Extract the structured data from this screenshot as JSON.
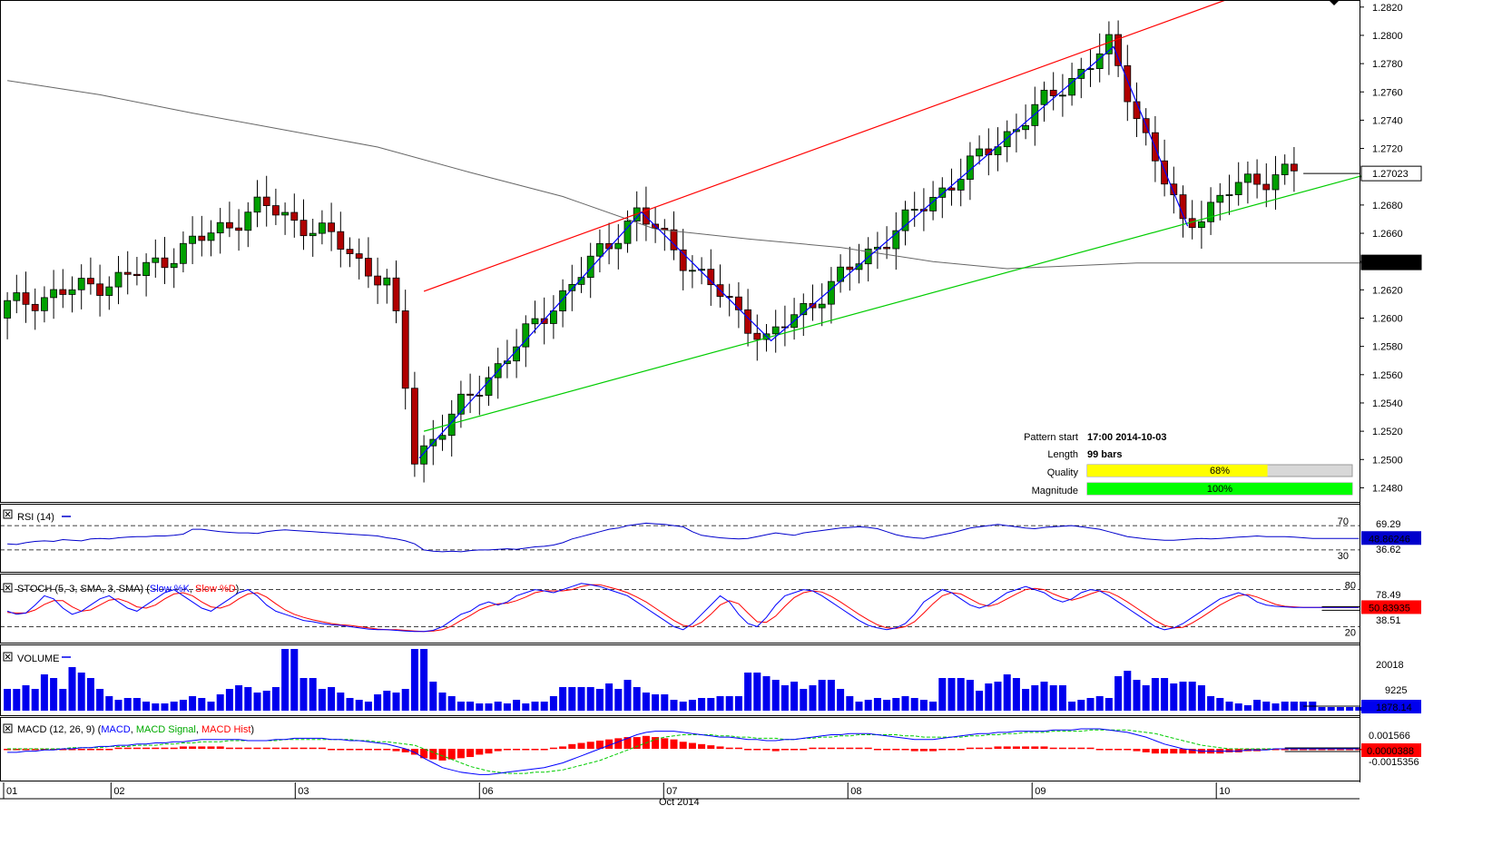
{
  "chart_data": {
    "type": "candlestick",
    "main": {
      "ylim": [
        1.247,
        1.2825
      ],
      "y_ticks": [
        "1.2820",
        "1.2800",
        "1.2780",
        "1.2760",
        "1.2740",
        "1.2720",
        "1.2700",
        "1.2680",
        "1.2660",
        "1.2640",
        "1.2620",
        "1.2600",
        "1.2580",
        "1.2560",
        "1.2540",
        "1.2520",
        "1.2500",
        "1.2480"
      ],
      "last_price": "1.27023",
      "ma_price": "1.26394",
      "pattern_points": [
        {
          "bar": 44.5,
          "price": 1.2501
        },
        {
          "bar": 68.5,
          "price": 1.2675
        },
        {
          "bar": 82.5,
          "price": 1.2584
        },
        {
          "bar": 119.5,
          "price": 1.2792
        },
        {
          "bar": 127.5,
          "price": 1.2665
        }
      ],
      "resistance_line": {
        "from": {
          "bar": 45,
          "price": 1.2619
        },
        "to": {
          "bar": 131.6,
          "price": 1.2825
        }
      },
      "support_line": {
        "from": {
          "bar": 45,
          "price": 1.252
        },
        "to": {
          "bar": 146.5,
          "price": 1.2701
        }
      },
      "moving_average": [
        {
          "bar": 0,
          "price": 1.2768
        },
        {
          "bar": 10,
          "price": 1.2758
        },
        {
          "bar": 20,
          "price": 1.2745
        },
        {
          "bar": 30,
          "price": 1.2733
        },
        {
          "bar": 40,
          "price": 1.2721
        },
        {
          "bar": 50,
          "price": 1.2703
        },
        {
          "bar": 60,
          "price": 1.2686
        },
        {
          "bar": 70,
          "price": 1.2663
        },
        {
          "bar": 80,
          "price": 1.2656
        },
        {
          "bar": 90,
          "price": 1.265
        },
        {
          "bar": 100,
          "price": 1.264
        },
        {
          "bar": 108,
          "price": 1.2635
        },
        {
          "bar": 115,
          "price": 1.2637
        },
        {
          "bar": 122,
          "price": 1.2639
        },
        {
          "bar": 132,
          "price": 1.2639
        },
        {
          "bar": 146.5,
          "price": 1.2639
        }
      ]
    },
    "pattern_info": {
      "start_label": "Pattern start",
      "start_value": "17:00 2014-10-03",
      "length_label": "Length",
      "length_value": "99 bars",
      "quality_label": "Quality",
      "quality_value": "68%",
      "quality_fraction": 0.68,
      "magnitude_label": "Magnitude",
      "magnitude_value": "100%",
      "magnitude_fraction": 1.0
    },
    "rsi": {
      "title": "RSI (14)",
      "level_high": "70",
      "level_low": "30",
      "tick_labels": [
        "69.29",
        "36.62"
      ],
      "last_value": "48.86246",
      "range": [
        0,
        100
      ],
      "values": [
        40,
        39,
        42,
        44,
        45,
        44,
        47,
        46,
        45,
        48,
        49,
        48,
        50,
        51,
        52,
        52,
        53,
        53,
        54,
        56,
        64,
        64,
        62,
        60,
        59,
        58,
        58,
        57,
        60,
        62,
        63,
        62,
        61,
        60,
        59,
        58,
        57,
        56,
        55,
        54,
        53,
        50,
        48,
        45,
        40,
        30,
        28,
        27,
        28,
        27,
        29,
        30,
        30,
        31,
        32,
        31,
        33,
        35,
        36,
        38,
        42,
        48,
        52,
        56,
        60,
        64,
        66,
        70,
        72,
        74,
        73,
        72,
        70,
        68,
        60,
        54,
        52,
        50,
        49,
        48,
        49,
        52,
        55,
        58,
        56,
        54,
        58,
        60,
        62,
        64,
        66,
        67,
        68,
        67,
        65,
        60,
        55,
        52,
        50,
        49,
        52,
        55,
        58,
        62,
        66,
        68,
        70,
        72,
        70,
        68,
        66,
        65,
        67,
        68,
        69,
        70,
        68,
        66,
        64,
        60,
        56,
        52,
        50,
        48,
        47,
        46,
        46,
        47,
        48,
        49,
        48,
        49,
        50,
        51,
        52,
        53,
        52,
        52,
        52,
        51,
        50,
        49,
        49,
        49,
        49,
        49,
        49
      ]
    },
    "stoch": {
      "title": "STOCH (5, 3, SMA, 3, SMA)",
      "k_label": "Slow %K",
      "d_label": "Slow %D",
      "level_high": "80",
      "level_low": "20",
      "tick_labels": [
        "78.49",
        "38.51"
      ],
      "last_value": "50.83935",
      "range": [
        0,
        100
      ],
      "k_values": [
        45,
        40,
        42,
        55,
        70,
        65,
        50,
        40,
        45,
        55,
        65,
        70,
        60,
        50,
        45,
        55,
        65,
        75,
        80,
        70,
        60,
        50,
        45,
        55,
        65,
        75,
        80,
        70,
        55,
        45,
        40,
        35,
        30,
        28,
        25,
        23,
        22,
        20,
        18,
        16,
        15,
        15,
        14,
        13,
        12,
        12,
        14,
        20,
        30,
        40,
        45,
        55,
        60,
        55,
        60,
        70,
        75,
        80,
        78,
        75,
        80,
        85,
        90,
        88,
        85,
        80,
        75,
        70,
        60,
        50,
        40,
        30,
        20,
        15,
        25,
        40,
        55,
        70,
        60,
        40,
        25,
        20,
        35,
        55,
        70,
        75,
        80,
        78,
        70,
        60,
        50,
        40,
        30,
        22,
        18,
        15,
        18,
        25,
        40,
        60,
        70,
        80,
        75,
        65,
        55,
        50,
        55,
        65,
        75,
        80,
        85,
        80,
        75,
        65,
        60,
        65,
        75,
        80,
        78,
        70,
        60,
        50,
        40,
        30,
        20,
        15,
        18,
        25,
        35,
        45,
        55,
        65,
        70,
        75,
        70,
        60,
        55,
        53,
        52,
        51,
        51,
        51,
        51,
        51,
        51,
        51,
        51
      ],
      "d_values": [
        43,
        42,
        42,
        47,
        56,
        62,
        62,
        52,
        45,
        47,
        55,
        63,
        65,
        60,
        52,
        50,
        55,
        65,
        73,
        75,
        70,
        60,
        52,
        50,
        55,
        65,
        73,
        75,
        68,
        57,
        47,
        40,
        35,
        31,
        28,
        25,
        23,
        22,
        20,
        18,
        16,
        15,
        15,
        14,
        13,
        12,
        13,
        15,
        21,
        30,
        38,
        47,
        53,
        57,
        58,
        62,
        68,
        75,
        78,
        78,
        78,
        80,
        85,
        88,
        88,
        84,
        80,
        75,
        68,
        60,
        50,
        40,
        30,
        22,
        20,
        27,
        40,
        55,
        62,
        57,
        42,
        28,
        27,
        37,
        53,
        67,
        75,
        78,
        76,
        69,
        60,
        50,
        40,
        31,
        23,
        18,
        17,
        20,
        28,
        42,
        57,
        70,
        75,
        73,
        65,
        57,
        53,
        57,
        65,
        73,
        80,
        82,
        80,
        73,
        67,
        63,
        67,
        73,
        78,
        76,
        69,
        60,
        50,
        40,
        30,
        22,
        18,
        19,
        26,
        35,
        45,
        55,
        63,
        70,
        72,
        68,
        62,
        56,
        53,
        52,
        51,
        51,
        51,
        51,
        51,
        51,
        51
      ]
    },
    "volume": {
      "title": "VOLUME",
      "tick_labels": [
        "20018",
        "9225"
      ],
      "last_value": "1878.14",
      "ymax": 34000,
      "values": [
        12000,
        12000,
        14000,
        12000,
        20000,
        18000,
        12000,
        24000,
        21000,
        18000,
        12000,
        8000,
        6000,
        7000,
        7000,
        5000,
        4000,
        4000,
        5000,
        6000,
        8000,
        7000,
        5000,
        9000,
        12000,
        14000,
        13000,
        10000,
        11000,
        13000,
        34000,
        34000,
        18000,
        18000,
        12000,
        13000,
        10000,
        7000,
        6000,
        5000,
        9000,
        11000,
        10000,
        12000,
        34000,
        34000,
        16000,
        10000,
        8000,
        5000,
        5000,
        4000,
        4000,
        5000,
        4000,
        6000,
        4000,
        5000,
        5000,
        8000,
        13000,
        13000,
        13000,
        13000,
        12000,
        15000,
        12000,
        17000,
        13000,
        10000,
        9000,
        9000,
        6000,
        5000,
        6000,
        7000,
        7000,
        8000,
        8000,
        8000,
        21000,
        21000,
        19000,
        17000,
        14000,
        16000,
        12000,
        14000,
        17000,
        17000,
        12000,
        8000,
        5000,
        6000,
        7000,
        6000,
        7000,
        8000,
        7000,
        6000,
        5000,
        18000,
        18000,
        18000,
        17000,
        11000,
        15000,
        16000,
        20000,
        18000,
        12000,
        14000,
        16000,
        14000,
        14000,
        5000,
        6000,
        7000,
        8000,
        7000,
        19000,
        22000,
        17000,
        14000,
        18000,
        18000,
        15000,
        16000,
        16000,
        14000,
        8000,
        7000,
        5000,
        4000,
        3000,
        6000,
        5000,
        4000,
        5000,
        5000,
        5000,
        5000,
        2000,
        2000,
        2000,
        2000,
        2000
      ]
    },
    "macd": {
      "title": "MACD (12, 26, 9)",
      "macd_label": "MACD",
      "signal_label": "MACD Signal",
      "hist_label": "MACD Hist",
      "tick_labels": [
        "0.001566",
        "-0.0015356"
      ],
      "last_value": "0.0000388",
      "range": [
        -0.0024,
        0.0024
      ],
      "macd_values": [
        -0.0003,
        -0.0003,
        -0.0002,
        -0.0002,
        -0.0001,
        -0.0001,
        0,
        0,
        0.0001,
        0.0001,
        0.0002,
        0.0002,
        0.0003,
        0.0003,
        0.0004,
        0.0004,
        0.0005,
        0.0005,
        0.0006,
        0.0006,
        0.0007,
        0.0008,
        0.0008,
        0.0008,
        0.0008,
        0.0008,
        0.0007,
        0.0007,
        0.0007,
        0.0008,
        0.0008,
        0.0009,
        0.0009,
        0.0009,
        0.0009,
        0.0008,
        0.0008,
        0.0007,
        0.0007,
        0.0006,
        0.0005,
        0.0004,
        0.0002,
        0,
        -0.0003,
        -0.0008,
        -0.0012,
        -0.0016,
        -0.0018,
        -0.002,
        -0.0021,
        -0.0022,
        -0.0022,
        -0.0021,
        -0.002,
        -0.0019,
        -0.0018,
        -0.0017,
        -0.0016,
        -0.0014,
        -0.0012,
        -0.0009,
        -0.0006,
        -0.0003,
        0,
        0.0003,
        0.0006,
        0.0009,
        0.0012,
        0.0014,
        0.0015,
        0.0015,
        0.0015,
        0.0014,
        0.0013,
        0.0012,
        0.0011,
        0.001,
        0.001,
        0.0009,
        0.0008,
        0.0008,
        0.0007,
        0.0007,
        0.0008,
        0.0008,
        0.0009,
        0.001,
        0.0011,
        0.0012,
        0.0012,
        0.0013,
        0.0013,
        0.0013,
        0.0012,
        0.0011,
        0.001,
        0.0009,
        0.0008,
        0.0008,
        0.0008,
        0.0009,
        0.001,
        0.0011,
        0.0012,
        0.0013,
        0.0013,
        0.0014,
        0.0014,
        0.0015,
        0.0015,
        0.0015,
        0.0015,
        0.0016,
        0.0016,
        0.0016,
        0.0017,
        0.0017,
        0.0017,
        0.0016,
        0.0015,
        0.0014,
        0.0012,
        0.001,
        0.0007,
        0.0004,
        0.0002,
        0,
        -0.0001,
        -0.0002,
        -0.0002,
        -0.0002,
        -0.0002,
        -0.0002,
        -0.0001,
        -0.0001,
        -0.0001,
        0,
        0,
        0,
        0,
        0,
        0,
        0,
        0,
        0,
        0
      ],
      "signal_values": [
        0,
        0,
        0,
        0,
        0,
        0,
        0,
        0.0001,
        0.0001,
        0.0001,
        0.0001,
        0.0002,
        0.0002,
        0.0002,
        0.0003,
        0.0003,
        0.0003,
        0.0004,
        0.0004,
        0.0005,
        0.0005,
        0.0006,
        0.0006,
        0.0006,
        0.0007,
        0.0007,
        0.0007,
        0.0007,
        0.0007,
        0.0007,
        0.0008,
        0.0008,
        0.0008,
        0.0008,
        0.0008,
        0.0008,
        0.0008,
        0.0008,
        0.0007,
        0.0007,
        0.0006,
        0.0006,
        0.0005,
        0.0004,
        0.0003,
        0,
        -0.0003,
        -0.0006,
        -0.0009,
        -0.0012,
        -0.0015,
        -0.0017,
        -0.0019,
        -0.002,
        -0.0021,
        -0.0021,
        -0.0021,
        -0.002,
        -0.002,
        -0.0019,
        -0.0018,
        -0.0016,
        -0.0014,
        -0.0012,
        -0.001,
        -0.0007,
        -0.0004,
        -0.0001,
        0.0002,
        0.0005,
        0.0008,
        0.001,
        0.0011,
        0.0012,
        0.0012,
        0.0012,
        0.0012,
        0.0011,
        0.0011,
        0.001,
        0.001,
        0.0009,
        0.0009,
        0.0009,
        0.0008,
        0.0008,
        0.0009,
        0.0009,
        0.001,
        0.001,
        0.0011,
        0.0011,
        0.0012,
        0.0012,
        0.0012,
        0.0012,
        0.0012,
        0.0011,
        0.0011,
        0.001,
        0.001,
        0.001,
        0.001,
        0.001,
        0.0011,
        0.0011,
        0.0012,
        0.0012,
        0.0013,
        0.0013,
        0.0014,
        0.0014,
        0.0014,
        0.0015,
        0.0015,
        0.0015,
        0.0015,
        0.0016,
        0.0016,
        0.0016,
        0.0016,
        0.0016,
        0.0015,
        0.0014,
        0.0013,
        0.0011,
        0.0009,
        0.0007,
        0.0005,
        0.0003,
        0.0002,
        0.0001,
        0,
        0,
        0,
        0,
        0,
        0,
        0,
        0,
        0,
        0,
        0,
        0,
        0,
        0,
        0
      ],
      "hist_values": [
        -0.0001,
        -0.0001,
        -0.0001,
        -0.0001,
        0,
        0,
        0,
        0,
        0,
        0,
        0,
        0,
        0.0001,
        0.0001,
        0.0001,
        0.0001,
        0.0001,
        0.0001,
        0.0001,
        0.0002,
        0.0002,
        0.0002,
        0.0002,
        0.0002,
        0.0001,
        0.0001,
        0.0001,
        0.0001,
        0.0001,
        0.0001,
        0.0001,
        0.0001,
        0.0001,
        0.0001,
        0.0001,
        0,
        0,
        0,
        0,
        0,
        0,
        -0.0001,
        -0.0002,
        -0.0003,
        -0.0005,
        -0.0008,
        -0.0009,
        -0.001,
        -0.0009,
        -0.0008,
        -0.0007,
        -0.0005,
        -0.0004,
        -0.0002,
        -0.0001,
        0,
        0,
        0,
        0,
        0.0001,
        0.0002,
        0.0004,
        0.0005,
        0.0006,
        0.0007,
        0.0008,
        0.0009,
        0.001,
        0.001,
        0.0011,
        0.001,
        0.0009,
        0.0008,
        0.0006,
        0.0005,
        0.0004,
        0.0003,
        0.0002,
        0.0001,
        0.0001,
        0,
        -0.0001,
        -0.0001,
        -0.0002,
        -0.0001,
        0,
        0,
        0.0001,
        0.0001,
        0.0001,
        0.0001,
        0.0001,
        0.0001,
        0.0001,
        0,
        0,
        -0.0001,
        -0.0001,
        -0.0002,
        -0.0002,
        -0.0002,
        -0.0001,
        -0.0001,
        0,
        0.0001,
        0.0001,
        0.0001,
        0.0002,
        0.0002,
        0.0002,
        0.0002,
        0.0002,
        0.0002,
        0.0001,
        0.0001,
        0.0001,
        0.0001,
        0.0001,
        0,
        0,
        0,
        -0.0001,
        -0.0002,
        -0.0003,
        -0.0004,
        -0.0004,
        -0.0004,
        -0.0004,
        -0.0004,
        -0.0004,
        -0.0004,
        -0.0004,
        -0.0003,
        -0.0003,
        -0.0002,
        -0.0002,
        -0.0001,
        -0.0001,
        0,
        0,
        0,
        0,
        0,
        0,
        0,
        0,
        0
      ]
    },
    "x_axis": {
      "bars": 147,
      "day_labels": [
        {
          "label": "01",
          "bar": 0
        },
        {
          "label": "02",
          "bar": 11.6
        },
        {
          "label": "03",
          "bar": 31.5
        },
        {
          "label": "06",
          "bar": 51.4
        },
        {
          "label": "07",
          "bar": 71.3
        },
        {
          "label": "08",
          "bar": 91.2
        },
        {
          "label": "09",
          "bar": 111.1
        },
        {
          "label": "10",
          "bar": 131
        }
      ],
      "month_label": "Oct 2014"
    },
    "colors": {
      "bull": "#00a000",
      "bear": "#b00000",
      "pattern": "#0000ff",
      "resistance": "#ff0000",
      "support": "#00cc00",
      "ma": "#666666",
      "rsi": "#0000cc",
      "stoch_k": "#0000ff",
      "stoch_d": "#ff0000",
      "volume": "#0000ee",
      "macd": "#0000ff",
      "signal": "#00cc00",
      "hist": "#ff0000",
      "last_price_bg": "#ffffff",
      "ma_bg": "#000000",
      "quality": "#ffff00",
      "magnitude": "#00ff00"
    }
  }
}
